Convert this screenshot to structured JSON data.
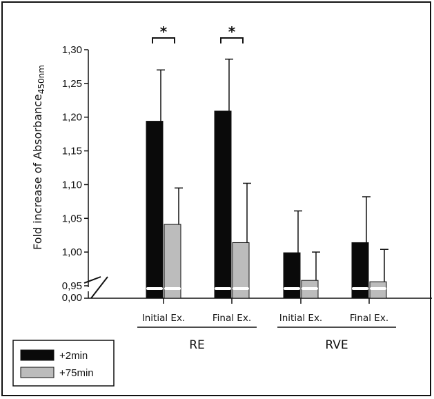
{
  "chart_data": {
    "type": "bar",
    "title": "",
    "xlabel": "",
    "ylabel": "Fold increase of Absorbance",
    "ylabel_subscript": "450nm",
    "ylim": [
      0.95,
      1.3
    ],
    "broken_axis": true,
    "axis_break_lower_tick": "0,00",
    "y_ticks": [
      "0,95",
      "1,00",
      "1,05",
      "1,10",
      "1,15",
      "1,20",
      "1,25",
      "1,30"
    ],
    "y_tick_values": [
      0.95,
      1.0,
      1.05,
      1.1,
      1.15,
      1.2,
      1.25,
      1.3
    ],
    "categories": [
      "Initial Ex.",
      "Final Ex.",
      "Initial Ex.",
      "Final Ex."
    ],
    "groups": [
      {
        "label": "RE",
        "categories": [
          0,
          1
        ]
      },
      {
        "label": "RVE",
        "categories": [
          2,
          3
        ]
      }
    ],
    "series": [
      {
        "name": "+2min",
        "color": "#0a0a0a",
        "values": [
          1.194,
          1.209,
          0.999,
          1.014
        ],
        "errors": [
          0.076,
          0.077,
          0.062,
          0.068
        ]
      },
      {
        "name": "+75min",
        "color": "#bcbcbc",
        "values": [
          1.041,
          1.014,
          0.958,
          0.956
        ],
        "errors": [
          0.054,
          0.088,
          0.042,
          0.048
        ]
      }
    ],
    "significance": [
      {
        "category": 0,
        "label": "*"
      },
      {
        "category": 1,
        "label": "*"
      }
    ],
    "legend_position": "bottom-left",
    "grid": false
  }
}
